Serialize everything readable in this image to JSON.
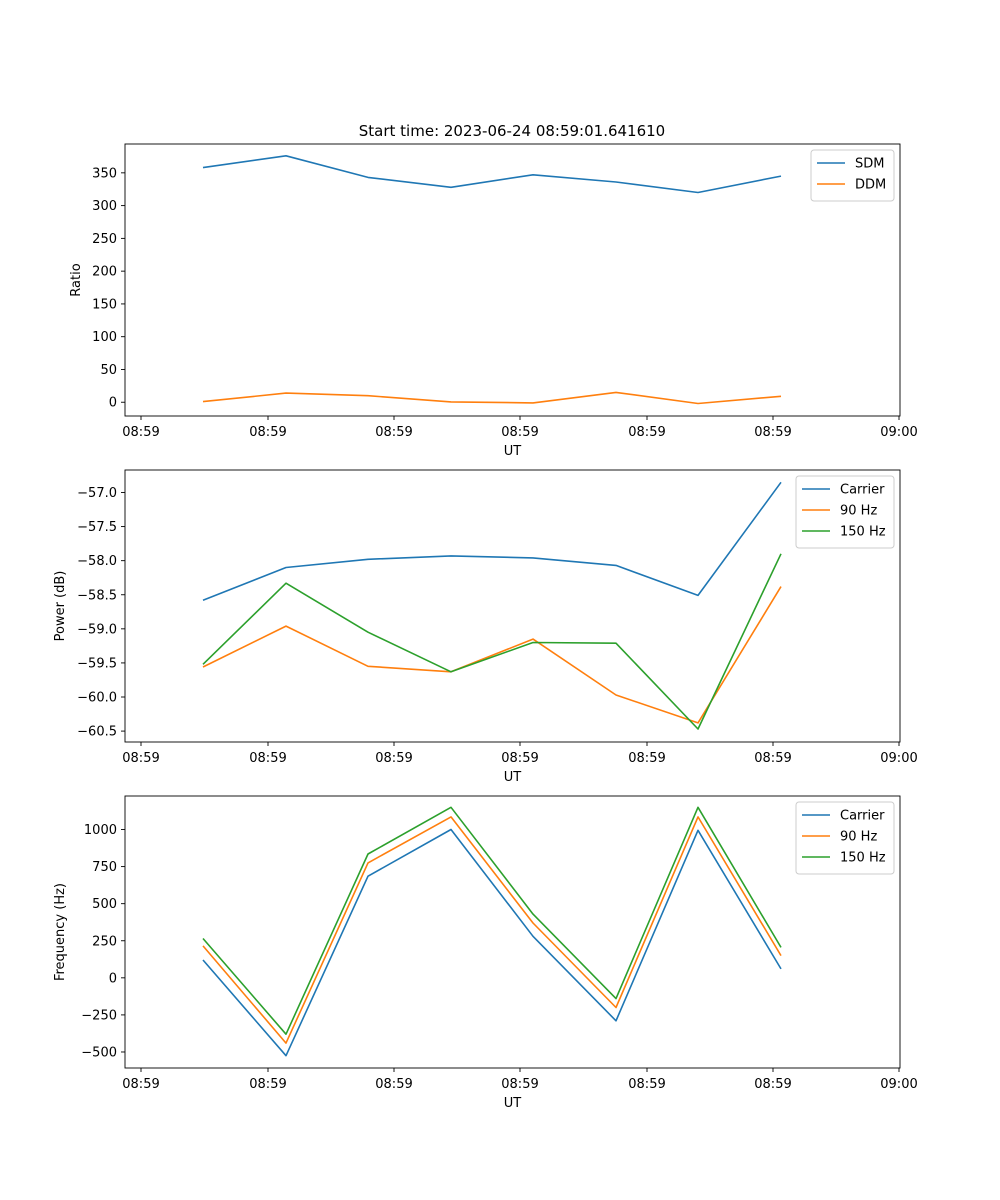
{
  "figure": {
    "title": "Start time: 2023-06-24 08:59:01.641610"
  },
  "chart_data": [
    {
      "type": "line",
      "title": "Start time: 2023-06-24 08:59:01.641610",
      "xlabel": "UT",
      "ylabel": "Ratio",
      "x_tick_labels": [
        "08:59",
        "08:59",
        "08:59",
        "08:59",
        "08:59",
        "08:59",
        "08:59",
        "09:00"
      ],
      "y_ticks": [
        0,
        50,
        100,
        150,
        200,
        250,
        300,
        350
      ],
      "ylim": [
        -21,
        394
      ],
      "grid": false,
      "legend_position": "top-right",
      "series": [
        {
          "name": "SDM",
          "color": "#1f77b4",
          "values": [
            358,
            376,
            343,
            328,
            347,
            336,
            320,
            345
          ]
        },
        {
          "name": "DDM",
          "color": "#ff7f0e",
          "values": [
            1,
            14,
            10,
            0.5,
            -1,
            15,
            -2,
            9
          ]
        }
      ]
    },
    {
      "type": "line",
      "title": "",
      "xlabel": "UT",
      "ylabel": "Power (dB)",
      "x_tick_labels": [
        "08:59",
        "08:59",
        "08:59",
        "08:59",
        "08:59",
        "08:59",
        "08:59",
        "09:00"
      ],
      "y_ticks": [
        -60.5,
        -60.0,
        -59.5,
        -59.0,
        -58.5,
        -58.0,
        -57.5,
        -57.0
      ],
      "y_tick_labels": [
        "−60.5",
        "−60.0",
        "−59.5",
        "−59.0",
        "−58.5",
        "−58.0",
        "−57.5",
        "−57.0"
      ],
      "ylim": [
        -60.66,
        -56.67
      ],
      "grid": false,
      "legend_position": "top-right",
      "series": [
        {
          "name": "Carrier",
          "color": "#1f77b4",
          "values": [
            -58.58,
            -58.1,
            -57.98,
            -57.93,
            -57.96,
            -58.07,
            -58.51,
            -56.85
          ]
        },
        {
          "name": "90 Hz",
          "color": "#ff7f0e",
          "values": [
            -59.56,
            -58.96,
            -59.55,
            -59.63,
            -59.15,
            -59.97,
            -60.38,
            -58.38
          ]
        },
        {
          "name": "150 Hz",
          "color": "#2ca02c",
          "values": [
            -59.52,
            -58.33,
            -59.05,
            -59.63,
            -59.2,
            -59.21,
            -60.47,
            -57.9
          ]
        }
      ]
    },
    {
      "type": "line",
      "title": "",
      "xlabel": "UT",
      "ylabel": "Frequency (Hz)",
      "x_tick_labels": [
        "08:59",
        "08:59",
        "08:59",
        "08:59",
        "08:59",
        "08:59",
        "08:59",
        "09:00"
      ],
      "y_ticks": [
        -500,
        -250,
        0,
        250,
        500,
        750,
        1000
      ],
      "y_tick_labels": [
        "−500",
        "−250",
        "0",
        "250",
        "500",
        "750",
        "1000"
      ],
      "ylim": [
        -608,
        1226
      ],
      "grid": false,
      "legend_position": "top-right",
      "series": [
        {
          "name": "Carrier",
          "color": "#1f77b4",
          "values": [
            120,
            -525,
            685,
            1000,
            280,
            -290,
            995,
            60
          ]
        },
        {
          "name": "90 Hz",
          "color": "#ff7f0e",
          "values": [
            215,
            -440,
            775,
            1085,
            370,
            -200,
            1085,
            150
          ]
        },
        {
          "name": "150 Hz",
          "color": "#2ca02c",
          "values": [
            265,
            -380,
            835,
            1150,
            430,
            -140,
            1150,
            205
          ]
        }
      ]
    }
  ]
}
